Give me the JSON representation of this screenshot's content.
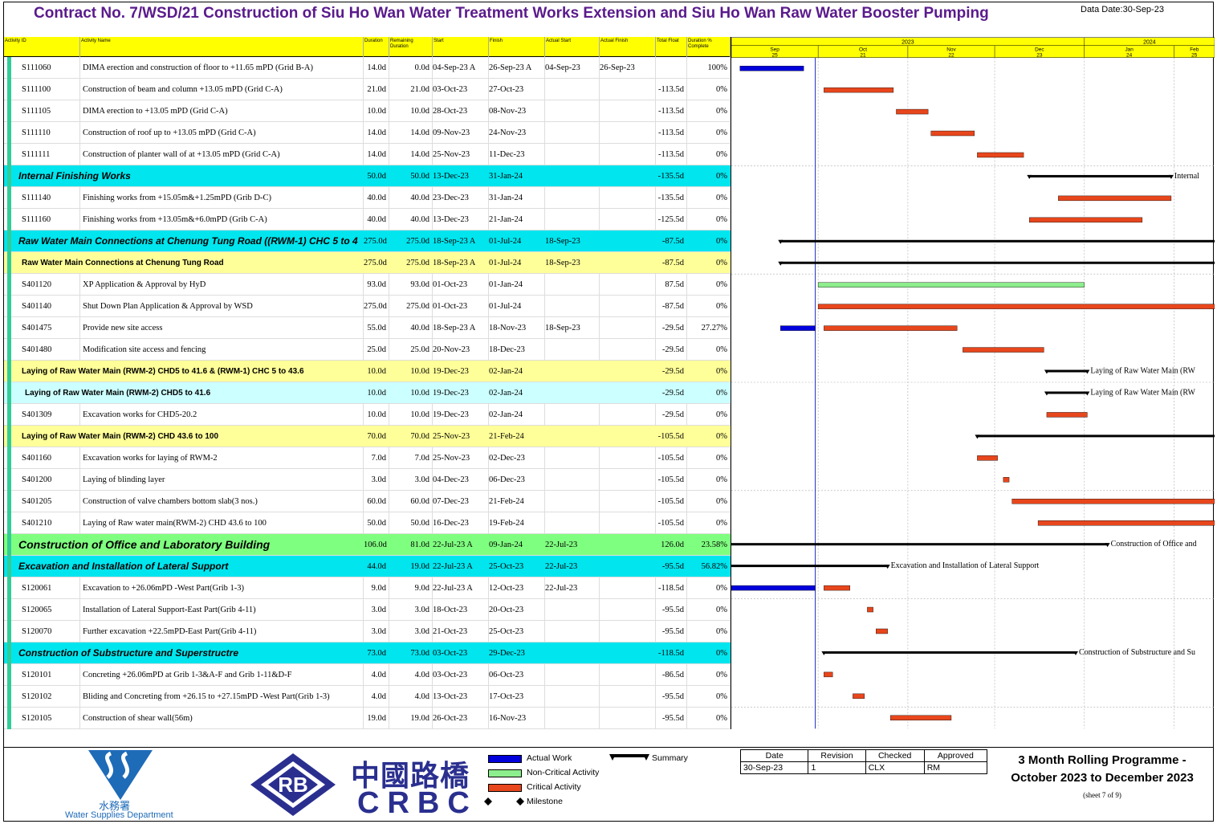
{
  "page": {
    "title": "Contract No. 7/WSD/21 Construction of Siu Ho Wan Water Treatment Works Extension and Siu Ho Wan Raw Water Booster Pumping",
    "data_date": "Data Date:30-Sep-23"
  },
  "colors": {
    "header_yellow": "#ffff00",
    "cyan": "#00e5ee",
    "light_yellow": "#ffff99",
    "light_cyan": "#ccffff",
    "green_band": "#7fff7f",
    "actual_work": "#0000dd",
    "critical": "#e8461c",
    "non_critical": "#8cee8c",
    "left_stripe": "#33cc99"
  },
  "columns": [
    "Activity ID",
    "Activity Name",
    "Duration",
    "Remaining Duration",
    "Start",
    "Finish",
    "Actual Start",
    "Actual Finish",
    "Total Float",
    "Duration % Complete"
  ],
  "chart_data": {
    "type": "gantt",
    "time_axis": {
      "years": [
        {
          "label": "2023"
        },
        {
          "label": "2024"
        }
      ],
      "months": [
        {
          "label": "Sep",
          "day": "25"
        },
        {
          "label": "Oct",
          "day": "21"
        },
        {
          "label": "Nov",
          "day": "22"
        },
        {
          "label": "Dec",
          "day": "23"
        },
        {
          "label": "Jan",
          "day": "24"
        },
        {
          "label": "Feb",
          "day": "25"
        }
      ],
      "start": "2023-09-01",
      "end": "2024-02-15",
      "data_date": "2023-09-30"
    },
    "rows": [
      {
        "id": "S111060",
        "name": "DIMA erection and construction of floor to +11.65 mPD (Grid B-A)",
        "dur": "14.0d",
        "rem": "0.0d",
        "start": "04-Sep-23 A",
        "finish": "26-Sep-23 A",
        "astart": "04-Sep-23",
        "afinish": "26-Sep-23",
        "float": "",
        "pct": "100%",
        "level": 0,
        "bars": [
          {
            "type": "actual",
            "s": "2023-09-04",
            "e": "2023-09-26"
          }
        ]
      },
      {
        "id": "S111100",
        "name": "Construction of beam and column +13.05 mPD (Grid C-A)",
        "dur": "21.0d",
        "rem": "21.0d",
        "start": "03-Oct-23",
        "finish": "27-Oct-23",
        "astart": "",
        "afinish": "",
        "float": "-113.5d",
        "pct": "0%",
        "level": 0,
        "bars": [
          {
            "type": "critical",
            "s": "2023-10-03",
            "e": "2023-10-27"
          }
        ]
      },
      {
        "id": "S111105",
        "name": "DIMA erection to +13.05 mPD (Grid C-A)",
        "dur": "10.0d",
        "rem": "10.0d",
        "start": "28-Oct-23",
        "finish": "08-Nov-23",
        "astart": "",
        "afinish": "",
        "float": "-113.5d",
        "pct": "0%",
        "level": 0,
        "bars": [
          {
            "type": "critical",
            "s": "2023-10-28",
            "e": "2023-11-08"
          }
        ]
      },
      {
        "id": "S111110",
        "name": "Construction of roof up to +13.05 mPD (Grid C-A)",
        "dur": "14.0d",
        "rem": "14.0d",
        "start": "09-Nov-23",
        "finish": "24-Nov-23",
        "astart": "",
        "afinish": "",
        "float": "-113.5d",
        "pct": "0%",
        "level": 0,
        "bars": [
          {
            "type": "critical",
            "s": "2023-11-09",
            "e": "2023-11-24"
          }
        ]
      },
      {
        "id": "S111111",
        "name": "Construction of planter wall of at +13.05 mPD (Grid C-A)",
        "dur": "14.0d",
        "rem": "14.0d",
        "start": "25-Nov-23",
        "finish": "11-Dec-23",
        "astart": "",
        "afinish": "",
        "float": "-113.5d",
        "pct": "0%",
        "level": 0,
        "bars": [
          {
            "type": "critical",
            "s": "2023-11-25",
            "e": "2023-12-11"
          }
        ]
      },
      {
        "id": "",
        "name": "Internal Finishing Works",
        "dur": "50.0d",
        "rem": "50.0d",
        "start": "13-Dec-23",
        "finish": "31-Jan-24",
        "astart": "",
        "afinish": "",
        "float": "-135.5d",
        "pct": "0%",
        "level": 1,
        "bars": [
          {
            "type": "summary",
            "s": "2023-12-13",
            "e": "2024-01-31",
            "label": "Internal"
          }
        ]
      },
      {
        "id": "S111140",
        "name": "Finishing works from +15.05m&+1.25mPD (Grib D-C)",
        "dur": "40.0d",
        "rem": "40.0d",
        "start": "23-Dec-23",
        "finish": "31-Jan-24",
        "astart": "",
        "afinish": "",
        "float": "-135.5d",
        "pct": "0%",
        "level": 0,
        "bars": [
          {
            "type": "critical",
            "s": "2023-12-23",
            "e": "2024-01-31"
          }
        ]
      },
      {
        "id": "S111160",
        "name": "Finishing works from +13.05m&+6.0mPD (Grib C-A)",
        "dur": "40.0d",
        "rem": "40.0d",
        "start": "13-Dec-23",
        "finish": "21-Jan-24",
        "astart": "",
        "afinish": "",
        "float": "-125.5d",
        "pct": "0%",
        "level": 0,
        "bars": [
          {
            "type": "critical",
            "s": "2023-12-13",
            "e": "2024-01-21"
          }
        ]
      },
      {
        "id": "",
        "name": "Raw Water Main Connections at Chenung Tung Road ((RWM-1) CHC 5  to 4",
        "dur": "275.0d",
        "rem": "275.0d",
        "start": "18-Sep-23 A",
        "finish": "01-Jul-24",
        "astart": "18-Sep-23",
        "afinish": "",
        "float": "-87.5d",
        "pct": "0%",
        "level": 1,
        "bars": [
          {
            "type": "summary",
            "s": "2023-09-18",
            "e": "2024-07-01"
          }
        ]
      },
      {
        "id": "",
        "name": "Raw Water Main Connections at Chenung Tung Road",
        "dur": "275.0d",
        "rem": "275.0d",
        "start": "18-Sep-23 A",
        "finish": "01-Jul-24",
        "astart": "18-Sep-23",
        "afinish": "",
        "float": "-87.5d",
        "pct": "0%",
        "level": 2,
        "bars": [
          {
            "type": "summary",
            "s": "2023-09-18",
            "e": "2024-07-01"
          }
        ]
      },
      {
        "id": "S401120",
        "name": "XP Application & Approval by HyD",
        "dur": "93.0d",
        "rem": "93.0d",
        "start": "01-Oct-23",
        "finish": "01-Jan-24",
        "astart": "",
        "afinish": "",
        "float": "87.5d",
        "pct": "0%",
        "level": 0,
        "bars": [
          {
            "type": "noncritical",
            "s": "2023-10-01",
            "e": "2024-01-01"
          }
        ]
      },
      {
        "id": "S401140",
        "name": "Shut Down Plan Application & Approval by WSD",
        "dur": "275.0d",
        "rem": "275.0d",
        "start": "01-Oct-23",
        "finish": "01-Jul-24",
        "astart": "",
        "afinish": "",
        "float": "-87.5d",
        "pct": "0%",
        "level": 0,
        "bars": [
          {
            "type": "critical",
            "s": "2023-10-01",
            "e": "2024-07-01"
          }
        ]
      },
      {
        "id": "S401475",
        "name": "Provide new site access",
        "dur": "55.0d",
        "rem": "40.0d",
        "start": "18-Sep-23 A",
        "finish": "18-Nov-23",
        "astart": "18-Sep-23",
        "afinish": "",
        "float": "-29.5d",
        "pct": "27.27%",
        "level": 0,
        "bars": [
          {
            "type": "actual",
            "s": "2023-09-18",
            "e": "2023-09-30"
          },
          {
            "type": "critical",
            "s": "2023-10-03",
            "e": "2023-11-18"
          }
        ]
      },
      {
        "id": "S401480",
        "name": "Modification site access and fencing",
        "dur": "25.0d",
        "rem": "25.0d",
        "start": "20-Nov-23",
        "finish": "18-Dec-23",
        "astart": "",
        "afinish": "",
        "float": "-29.5d",
        "pct": "0%",
        "level": 0,
        "bars": [
          {
            "type": "critical",
            "s": "2023-11-20",
            "e": "2023-12-18"
          }
        ]
      },
      {
        "id": "",
        "name": "Laying of Raw Water Main  (RWM-2)  CHD5 to 41.6 & (RWM-1) CHC 5  to 43.6",
        "dur": "10.0d",
        "rem": "10.0d",
        "start": "19-Dec-23",
        "finish": "02-Jan-24",
        "astart": "",
        "afinish": "",
        "float": "-29.5d",
        "pct": "0%",
        "level": 2,
        "bars": [
          {
            "type": "summary",
            "s": "2023-12-19",
            "e": "2024-01-02",
            "label": "Laying of Raw Water Main  (RW"
          }
        ]
      },
      {
        "id": "",
        "name": "Laying of Raw Water Main  (RWM-2)  CHD5 to 41.6",
        "dur": "10.0d",
        "rem": "10.0d",
        "start": "19-Dec-23",
        "finish": "02-Jan-24",
        "astart": "",
        "afinish": "",
        "float": "-29.5d",
        "pct": "0%",
        "level": 3,
        "bars": [
          {
            "type": "summary",
            "s": "2023-12-19",
            "e": "2024-01-02",
            "label": "Laying of Raw Water Main  (RW"
          }
        ]
      },
      {
        "id": "S401309",
        "name": "Excavation works for CHD5-20.2",
        "dur": "10.0d",
        "rem": "10.0d",
        "start": "19-Dec-23",
        "finish": "02-Jan-24",
        "astart": "",
        "afinish": "",
        "float": "-29.5d",
        "pct": "0%",
        "level": 0,
        "bars": [
          {
            "type": "critical",
            "s": "2023-12-19",
            "e": "2024-01-02"
          }
        ]
      },
      {
        "id": "",
        "name": "Laying of Raw Water Main (RWM-2) CHD 43.6 to 100",
        "dur": "70.0d",
        "rem": "70.0d",
        "start": "25-Nov-23",
        "finish": "21-Feb-24",
        "astart": "",
        "afinish": "",
        "float": "-105.5d",
        "pct": "0%",
        "level": 2,
        "bars": [
          {
            "type": "summary",
            "s": "2023-11-25",
            "e": "2024-02-21"
          }
        ]
      },
      {
        "id": "S401160",
        "name": "Excavation works for laying of RWM-2",
        "dur": "7.0d",
        "rem": "7.0d",
        "start": "25-Nov-23",
        "finish": "02-Dec-23",
        "astart": "",
        "afinish": "",
        "float": "-105.5d",
        "pct": "0%",
        "level": 0,
        "bars": [
          {
            "type": "critical",
            "s": "2023-11-25",
            "e": "2023-12-02"
          }
        ]
      },
      {
        "id": "S401200",
        "name": "Laying of blinding layer",
        "dur": "3.0d",
        "rem": "3.0d",
        "start": "04-Dec-23",
        "finish": "06-Dec-23",
        "astart": "",
        "afinish": "",
        "float": "-105.5d",
        "pct": "0%",
        "level": 0,
        "bars": [
          {
            "type": "critical",
            "s": "2023-12-04",
            "e": "2023-12-06"
          }
        ]
      },
      {
        "id": "S401205",
        "name": "Construction of valve chambers bottom slab(3 nos.)",
        "dur": "60.0d",
        "rem": "60.0d",
        "start": "07-Dec-23",
        "finish": "21-Feb-24",
        "astart": "",
        "afinish": "",
        "float": "-105.5d",
        "pct": "0%",
        "level": 0,
        "bars": [
          {
            "type": "critical",
            "s": "2023-12-07",
            "e": "2024-02-21"
          }
        ]
      },
      {
        "id": "S401210",
        "name": "Laying of Raw water main(RWM-2) CHD 43.6 to 100",
        "dur": "50.0d",
        "rem": "50.0d",
        "start": "16-Dec-23",
        "finish": "19-Feb-24",
        "astart": "",
        "afinish": "",
        "float": "-105.5d",
        "pct": "0%",
        "level": 0,
        "bars": [
          {
            "type": "critical",
            "s": "2023-12-16",
            "e": "2024-02-19"
          }
        ]
      },
      {
        "id": "",
        "name": "Construction of Office and Laboratory Building",
        "dur": "106.0d",
        "rem": "81.0d",
        "start": "22-Jul-23 A",
        "finish": "09-Jan-24",
        "astart": "22-Jul-23",
        "afinish": "",
        "float": "126.0d",
        "pct": "23.58%",
        "level": 4,
        "bars": [
          {
            "type": "summary",
            "s": "2023-07-22",
            "e": "2024-01-09",
            "label": "Construction of Office and"
          }
        ]
      },
      {
        "id": "",
        "name": "Excavation and Installation of Lateral Support",
        "dur": "44.0d",
        "rem": "19.0d",
        "start": "22-Jul-23 A",
        "finish": "25-Oct-23",
        "astart": "22-Jul-23",
        "afinish": "",
        "float": "-95.5d",
        "pct": "56.82%",
        "level": 1,
        "bars": [
          {
            "type": "summary",
            "s": "2023-07-22",
            "e": "2023-10-25",
            "label": "Excavation and Installation of Lateral Support"
          }
        ]
      },
      {
        "id": "S120061",
        "name": "Excavation to +26.06mPD -West Part(Grib 1-3)",
        "dur": "9.0d",
        "rem": "9.0d",
        "start": "22-Jul-23 A",
        "finish": "12-Oct-23",
        "astart": "22-Jul-23",
        "afinish": "",
        "float": "-118.5d",
        "pct": "0%",
        "level": 0,
        "bars": [
          {
            "type": "actual",
            "s": "2023-07-22",
            "e": "2023-09-30"
          },
          {
            "type": "critical",
            "s": "2023-10-03",
            "e": "2023-10-12"
          }
        ]
      },
      {
        "id": "S120065",
        "name": "Installation of Lateral Support-East Part(Grib 4-11)",
        "dur": "3.0d",
        "rem": "3.0d",
        "start": "18-Oct-23",
        "finish": "20-Oct-23",
        "astart": "",
        "afinish": "",
        "float": "-95.5d",
        "pct": "0%",
        "level": 0,
        "bars": [
          {
            "type": "critical",
            "s": "2023-10-18",
            "e": "2023-10-20"
          }
        ]
      },
      {
        "id": "S120070",
        "name": "Further excavation +22.5mPD-East Part(Grib 4-11)",
        "dur": "3.0d",
        "rem": "3.0d",
        "start": "21-Oct-23",
        "finish": "25-Oct-23",
        "astart": "",
        "afinish": "",
        "float": "-95.5d",
        "pct": "0%",
        "level": 0,
        "bars": [
          {
            "type": "critical",
            "s": "2023-10-21",
            "e": "2023-10-25"
          }
        ]
      },
      {
        "id": "",
        "name": "Construction of Substructure and Superstructre",
        "dur": "73.0d",
        "rem": "73.0d",
        "start": "03-Oct-23",
        "finish": "29-Dec-23",
        "astart": "",
        "afinish": "",
        "float": "-118.5d",
        "pct": "0%",
        "level": 1,
        "bars": [
          {
            "type": "summary",
            "s": "2023-10-03",
            "e": "2023-12-29",
            "label": "Construction of Substructure and Su"
          }
        ]
      },
      {
        "id": "S120101",
        "name": "Concreting +26.06mPD at Grib 1-3&A-F and Grib 1-11&D-F",
        "dur": "4.0d",
        "rem": "4.0d",
        "start": "03-Oct-23",
        "finish": "06-Oct-23",
        "astart": "",
        "afinish": "",
        "float": "-86.5d",
        "pct": "0%",
        "level": 0,
        "bars": [
          {
            "type": "critical",
            "s": "2023-10-03",
            "e": "2023-10-06"
          }
        ]
      },
      {
        "id": "S120102",
        "name": "Bliding and Concreting from +26.15 to +27.15mPD -West Part(Grib 1-3)",
        "dur": "4.0d",
        "rem": "4.0d",
        "start": "13-Oct-23",
        "finish": "17-Oct-23",
        "astart": "",
        "afinish": "",
        "float": "-95.5d",
        "pct": "0%",
        "level": 0,
        "bars": [
          {
            "type": "critical",
            "s": "2023-10-13",
            "e": "2023-10-17"
          }
        ]
      },
      {
        "id": "S120105",
        "name": "Construction of shear wall(56m)",
        "dur": "19.0d",
        "rem": "19.0d",
        "start": "26-Oct-23",
        "finish": "16-Nov-23",
        "astart": "",
        "afinish": "",
        "float": "-95.5d",
        "pct": "0%",
        "level": 0,
        "bars": [
          {
            "type": "critical",
            "s": "2023-10-26",
            "e": "2023-11-16"
          }
        ]
      }
    ]
  },
  "legend": {
    "actual_work": "Actual Work",
    "non_critical": "Non-Critical Activity",
    "critical": "Critical Activity",
    "milestone": "Milestone",
    "summary": "Summary"
  },
  "logos": {
    "wsd_chinese": "水務署",
    "wsd_english": "Water Supplies Department",
    "rb": "RB",
    "crbc_chinese": "中國路橋",
    "crbc_english": "CRBC"
  },
  "revision": {
    "headers": [
      "Date",
      "Revision",
      "Checked",
      "Approved"
    ],
    "values": [
      "30-Sep-23",
      "1",
      "CLX",
      "RM"
    ]
  },
  "programme": {
    "line1": "3 Month Rolling Programme -",
    "line2": "October 2023 to December 2023",
    "sheet": "(sheet 7 of 9)"
  }
}
